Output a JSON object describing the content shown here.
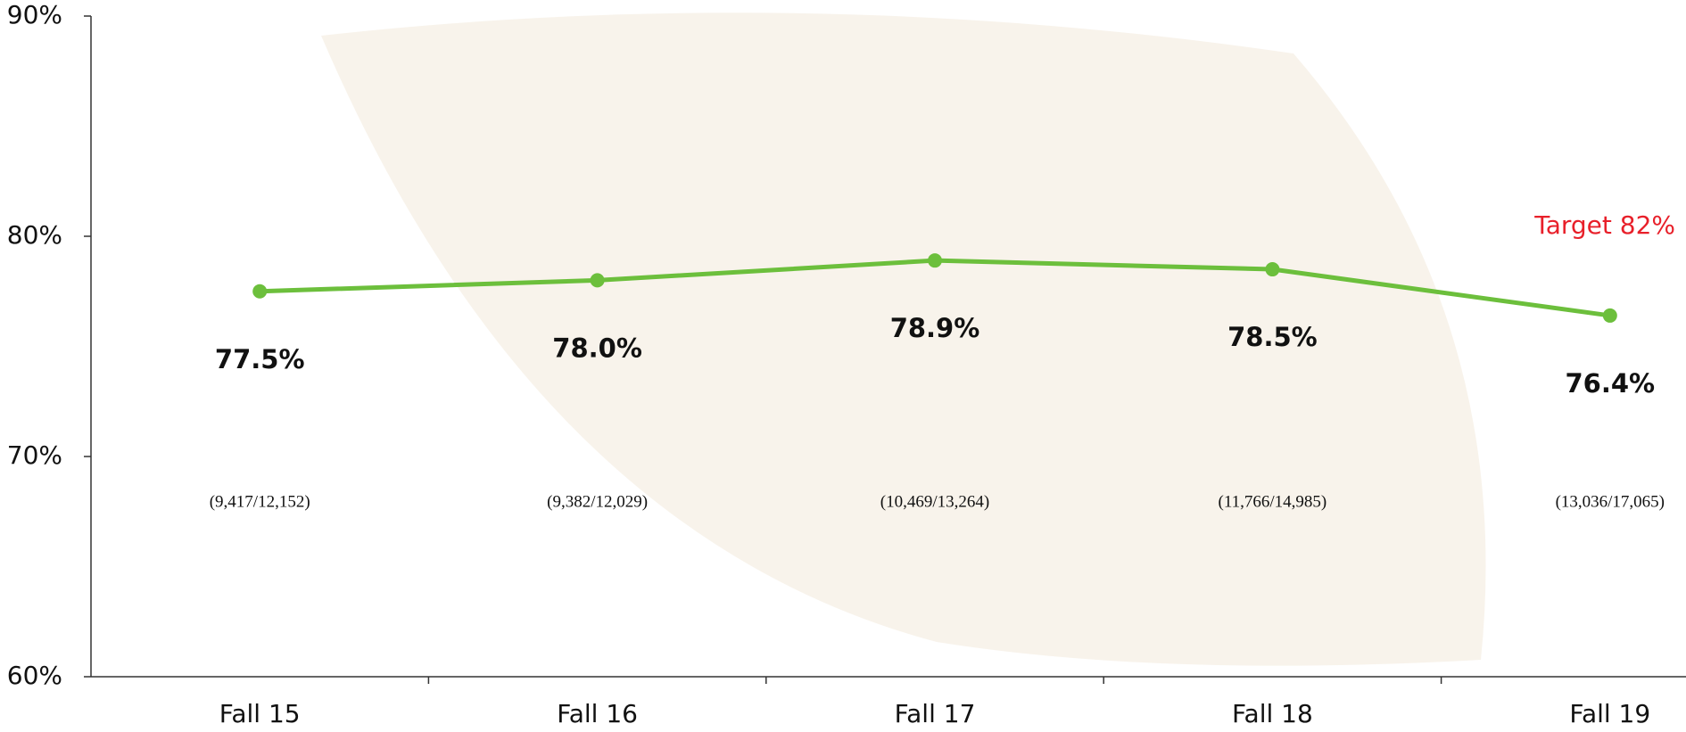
{
  "chart_data": {
    "type": "line",
    "categories": [
      "Fall 15",
      "Fall 16",
      "Fall 17",
      "Fall 18",
      "Fall 19"
    ],
    "series": [
      {
        "color": "#6cbf3c",
        "values": [
          77.5,
          78.0,
          78.9,
          78.5,
          76.4
        ],
        "value_labels": [
          "77.5%",
          "78.0%",
          "78.9%",
          "78.5%",
          "76.4%"
        ]
      }
    ],
    "counts": [
      "(9,417/12,152)",
      "(9,382/12,029)",
      "(10,469/13,264)",
      "(11,766/14,985)",
      "(13,036/17,065)"
    ],
    "annotations": [
      {
        "text": "Target 82%",
        "color": "#e8202a"
      }
    ],
    "ylim": [
      60,
      90
    ],
    "yticks": [
      {
        "value": 60,
        "label": "60%"
      },
      {
        "value": 70,
        "label": "70%"
      },
      {
        "value": 80,
        "label": "80%"
      },
      {
        "value": 90,
        "label": "90%"
      }
    ],
    "grid": false
  }
}
